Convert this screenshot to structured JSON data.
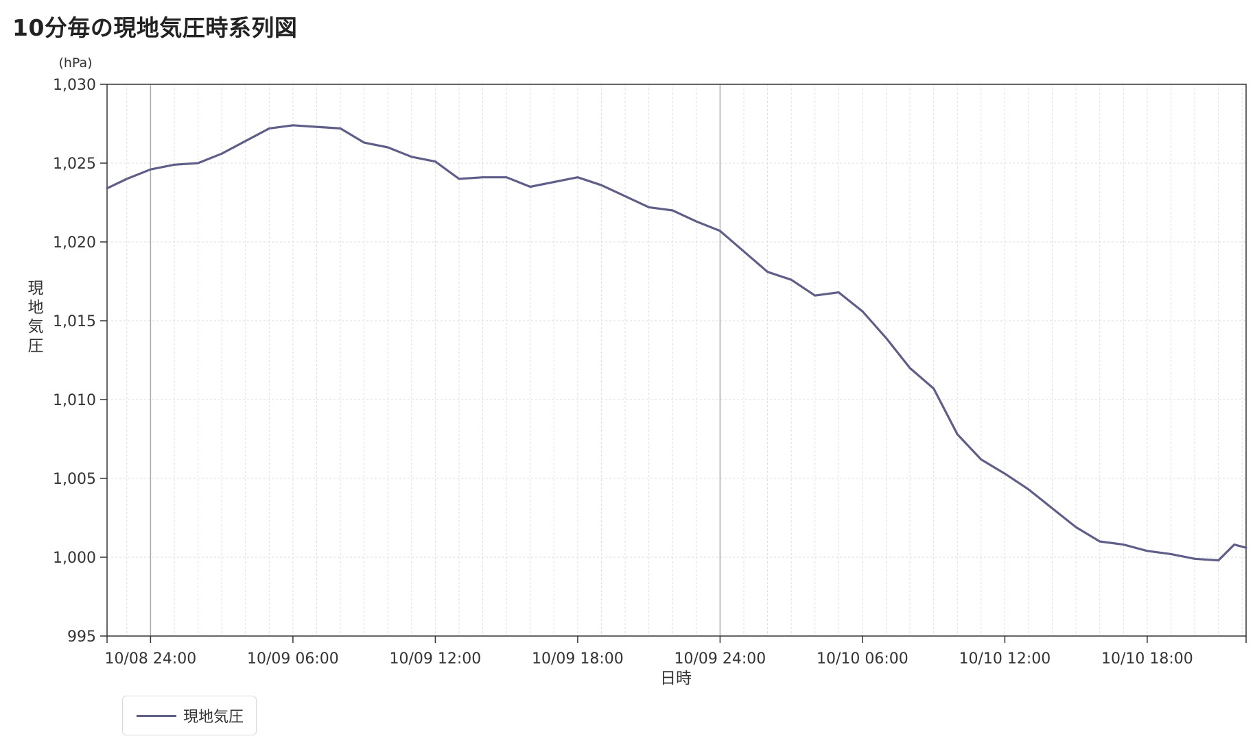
{
  "title": "10分毎の現地気圧時系列図",
  "colors": {
    "series": "#5e5e88",
    "axis": "#333333",
    "grid": "#dddddd",
    "day_line": "#aaaaaa"
  },
  "legend": {
    "label": "現地気圧"
  },
  "chart_data": {
    "type": "line",
    "title": "",
    "unit": "(hPa)",
    "ylabel": "現地気圧",
    "xlabel": "日時",
    "ylim": [
      995,
      1030
    ],
    "y_ticks": [
      995,
      1000,
      1005,
      1010,
      1015,
      1020,
      1025,
      1030
    ],
    "y_tick_labels": [
      "995",
      "1,000",
      "1,005",
      "1,010",
      "1,015",
      "1,020",
      "1,025",
      "1,030"
    ],
    "x_range": [
      "10/08 22:10",
      "10/10 22:10"
    ],
    "x_ticks": [
      "10/08 24:00",
      "10/09 06:00",
      "10/09 12:00",
      "10/09 18:00",
      "10/09 24:00",
      "10/10 06:00",
      "10/10 12:00",
      "10/10 18:00"
    ],
    "grid": true,
    "legend_position": "bottom-left",
    "series": [
      {
        "name": "現地気圧",
        "x": [
          "10/08 22:10",
          "10/08 23:00",
          "10/09 00:00",
          "10/09 01:00",
          "10/09 02:00",
          "10/09 03:00",
          "10/09 04:00",
          "10/09 05:00",
          "10/09 06:00",
          "10/09 07:00",
          "10/09 08:00",
          "10/09 09:00",
          "10/09 10:00",
          "10/09 11:00",
          "10/09 12:00",
          "10/09 13:00",
          "10/09 14:00",
          "10/09 15:00",
          "10/09 16:00",
          "10/09 17:00",
          "10/09 18:00",
          "10/09 19:00",
          "10/09 20:00",
          "10/09 21:00",
          "10/09 22:00",
          "10/09 23:00",
          "10/10 00:00",
          "10/10 01:00",
          "10/10 02:00",
          "10/10 03:00",
          "10/10 04:00",
          "10/10 05:00",
          "10/10 06:00",
          "10/10 07:00",
          "10/10 08:00",
          "10/10 09:00",
          "10/10 10:00",
          "10/10 11:00",
          "10/10 12:00",
          "10/10 13:00",
          "10/10 14:00",
          "10/10 15:00",
          "10/10 16:00",
          "10/10 17:00",
          "10/10 18:00",
          "10/10 19:00",
          "10/10 20:00",
          "10/10 21:00",
          "10/10 21:40",
          "10/10 22:10"
        ],
        "y": [
          1023.4,
          1024.0,
          1024.6,
          1024.9,
          1025.0,
          1025.6,
          1026.4,
          1027.2,
          1027.4,
          1027.3,
          1027.2,
          1026.3,
          1026.0,
          1025.4,
          1025.1,
          1024.0,
          1024.1,
          1024.1,
          1023.5,
          1023.8,
          1024.1,
          1023.6,
          1022.9,
          1022.2,
          1022.0,
          1021.3,
          1020.7,
          1019.4,
          1018.1,
          1017.6,
          1016.6,
          1016.8,
          1015.6,
          1013.9,
          1012.0,
          1010.7,
          1007.8,
          1006.2,
          1005.3,
          1004.3,
          1003.1,
          1001.9,
          1001.0,
          1000.8,
          1000.4,
          1000.2,
          999.9,
          999.8,
          1000.8,
          1000.6
        ]
      }
    ]
  }
}
